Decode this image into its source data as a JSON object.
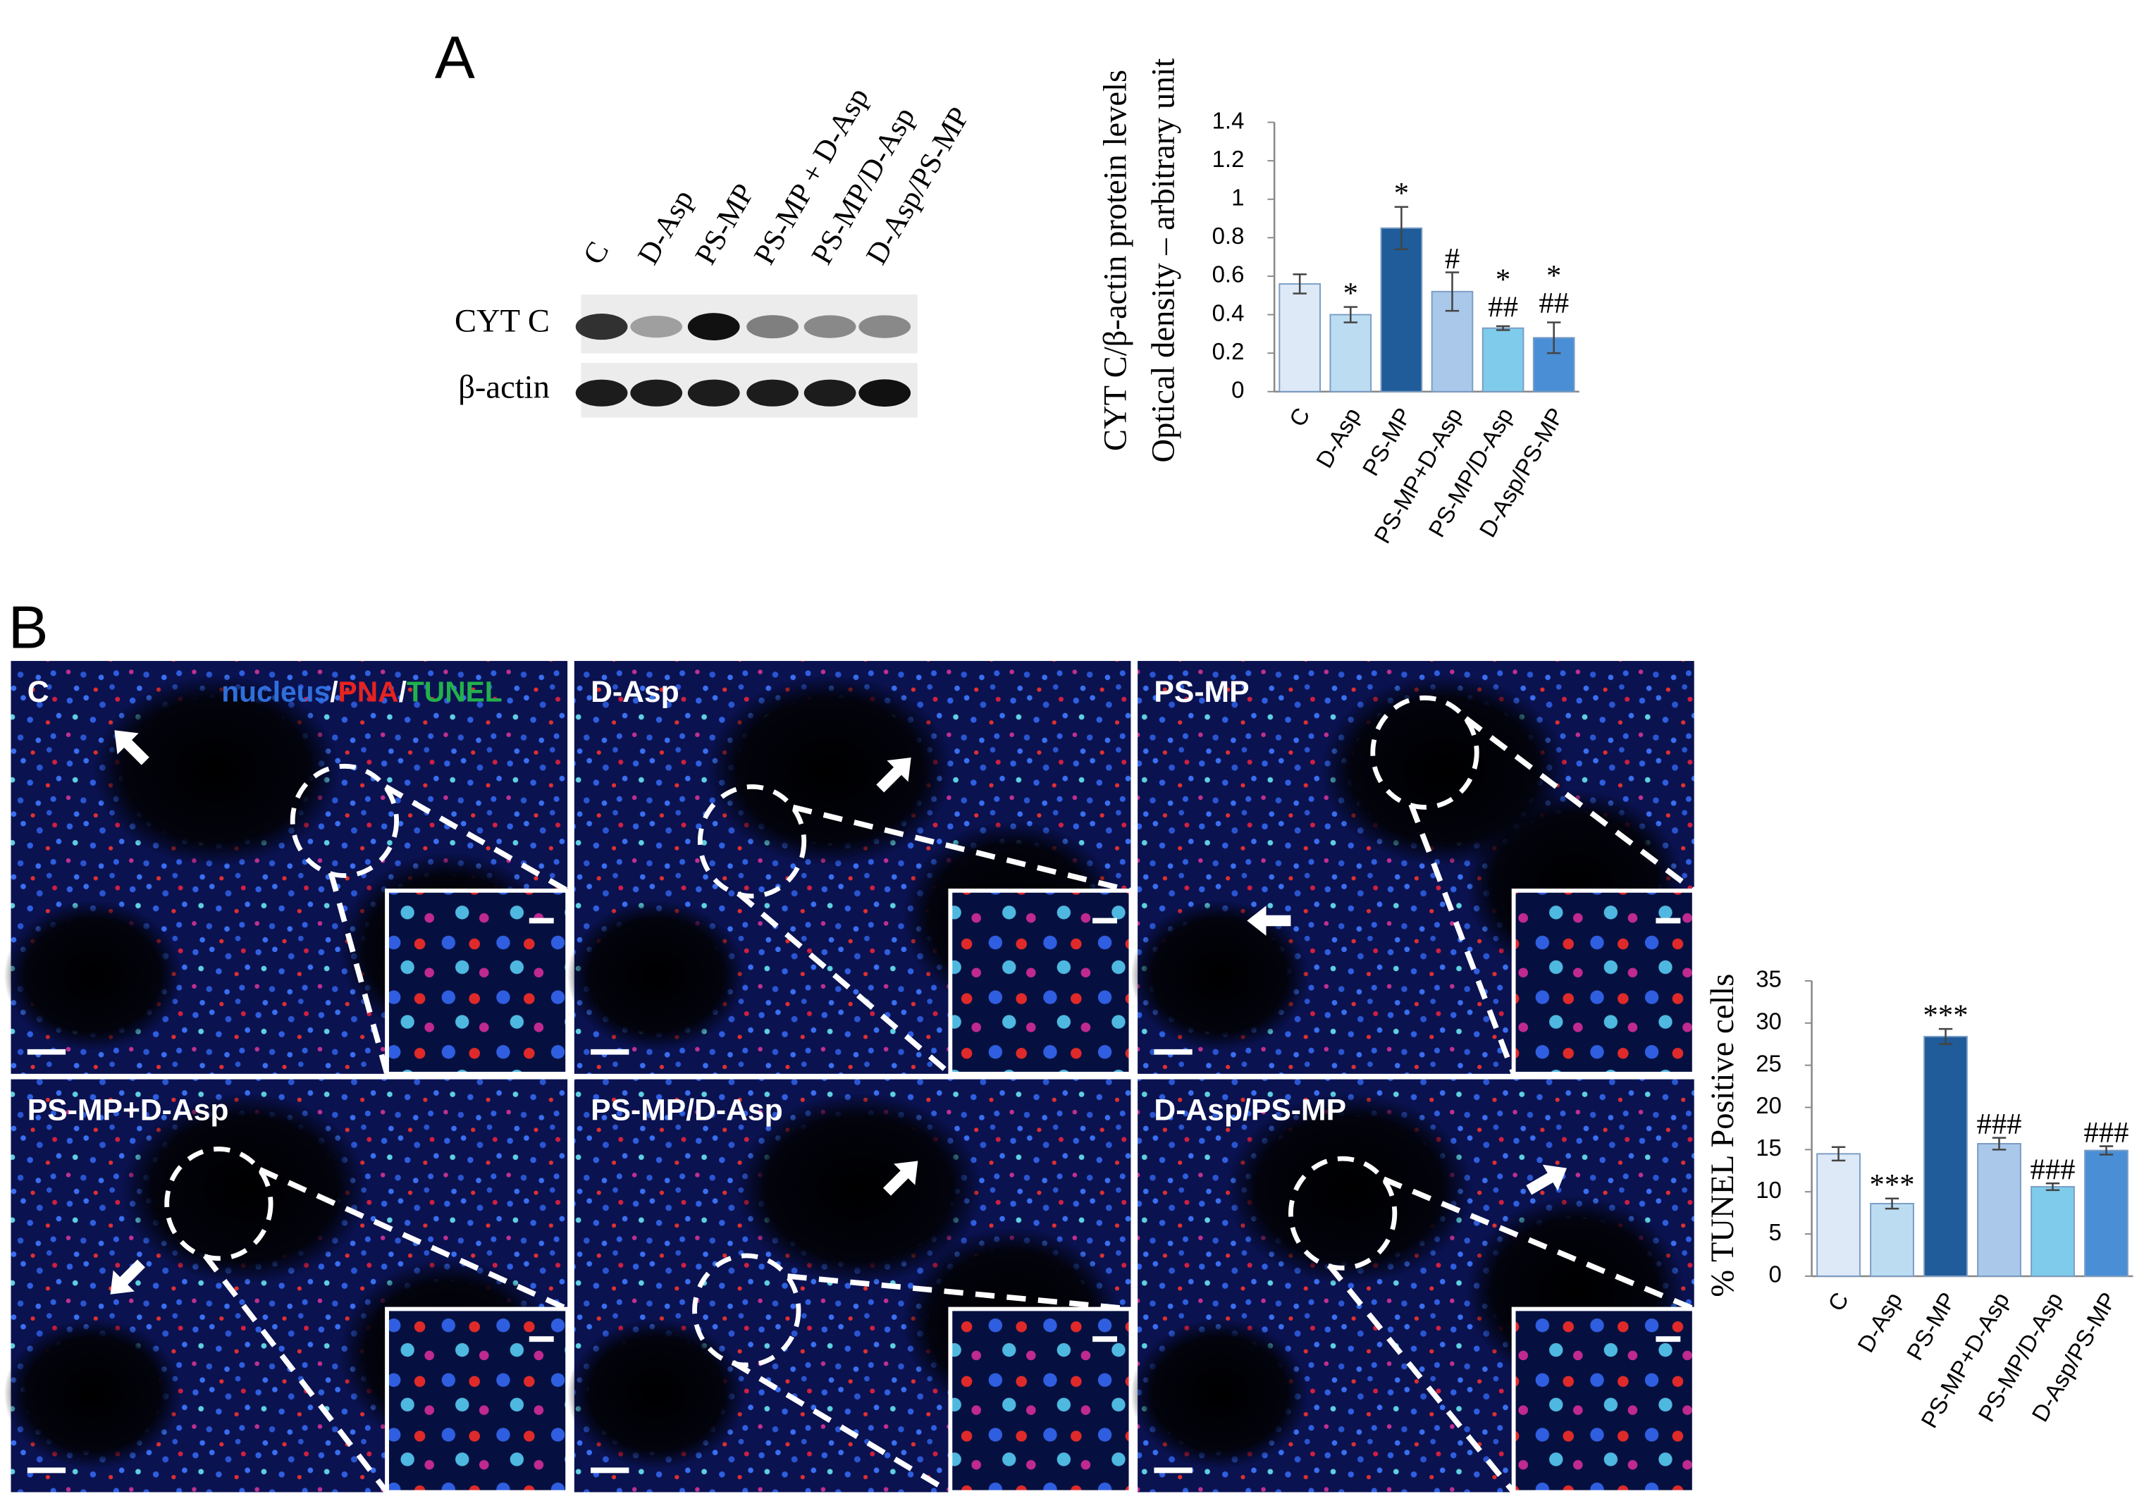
{
  "panel_labels": {
    "a": "A",
    "b": "B"
  },
  "western_blot": {
    "lanes": [
      "C",
      "D-Asp",
      "PS-MP",
      "PS-MP + D-Asp",
      "PS-MP/D-Asp",
      "D-Asp/PS-MP"
    ],
    "rows": [
      "CYT C",
      "β-actin"
    ]
  },
  "micrographs": {
    "stain_legend": {
      "items": [
        {
          "name": "nucleus",
          "color": "#2f6fdc"
        },
        {
          "name": "PNA",
          "color": "#e8231f"
        },
        {
          "name": "TUNEL",
          "color": "#22b14c"
        }
      ],
      "separator": "/"
    },
    "panels": [
      "C",
      "D-Asp",
      "PS-MP",
      "PS-MP+D-Asp",
      "PS-MP/D-Asp",
      "D-Asp/PS-MP"
    ]
  },
  "chart_data": [
    {
      "type": "bar",
      "ylabel": [
        "CYT C/β-actin protein levels",
        "Optical density – arbitrary unit"
      ],
      "categories": [
        "C",
        "D-Asp",
        "PS-MP",
        "PS-MP+D-Asp",
        "PS-MP/D-Asp",
        "D-Asp/PS-MP"
      ],
      "values": [
        0.56,
        0.4,
        0.85,
        0.52,
        0.33,
        0.28
      ],
      "errors": [
        0.05,
        0.04,
        0.11,
        0.1,
        0.01,
        0.08
      ],
      "colors": [
        "#dde9f7",
        "#bcdcf2",
        "#1f5c99",
        "#a9c8ea",
        "#7fcbeb",
        "#4a8fd6"
      ],
      "annotations": [
        null,
        "*",
        "*",
        "#",
        "*",
        "*"
      ],
      "annotations_lower": [
        null,
        null,
        null,
        null,
        "##",
        "##"
      ],
      "ylim": [
        0,
        1.4
      ],
      "yticks": [
        0,
        0.2,
        0.4,
        0.6,
        0.8,
        1,
        1.2,
        1.4
      ]
    },
    {
      "type": "bar",
      "ylabel": "% TUNEL Positive cells",
      "categories": [
        "C",
        "D-Asp",
        "PS-MP",
        "PS-MP+D-Asp",
        "PS-MP/D-Asp",
        "D-Asp/PS-MP"
      ],
      "values": [
        14.5,
        8.6,
        28.4,
        15.7,
        10.6,
        14.9
      ],
      "errors": [
        0.8,
        0.6,
        0.9,
        0.7,
        0.4,
        0.5
      ],
      "colors": [
        "#dde9f7",
        "#bcdcf2",
        "#1f5c99",
        "#a9c8ea",
        "#7fcbeb",
        "#4a8fd6"
      ],
      "annotations": [
        null,
        "***",
        "***",
        "###",
        "###",
        "###"
      ],
      "ylim": [
        0,
        35
      ],
      "yticks": [
        0,
        5,
        10,
        15,
        20,
        25,
        30,
        35
      ]
    }
  ]
}
